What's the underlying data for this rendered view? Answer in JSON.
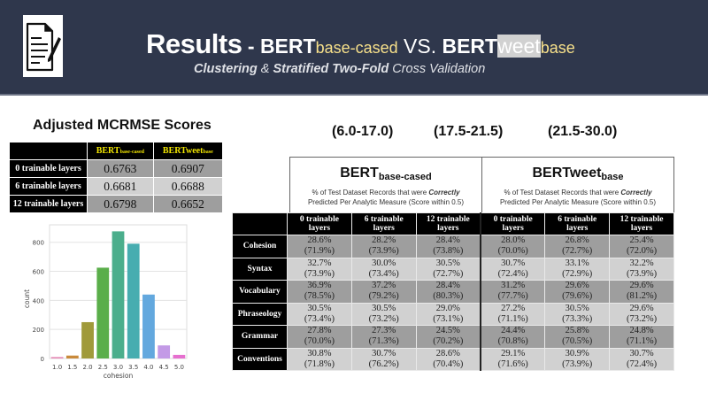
{
  "banner": {
    "title_main": "Results",
    "dash": " - ",
    "model1_name": "BERT",
    "model1_sub": "base-cased",
    "vs": " VS. ",
    "model2_name_bold": "BERT",
    "model2_name_light": "weet",
    "model2_sub": "base",
    "subtitle_part1": "Clustering",
    "subtitle_part2": " & ",
    "subtitle_part3": "Stratified Two-Fold",
    "subtitle_part4": " Cross Validation",
    "background_color": "#2f374c",
    "subscript_color": "#f7e08a"
  },
  "mcrmse": {
    "title": "Adjusted MCRMSE Scores",
    "columns": [
      {
        "name": "BERT",
        "sub": "base-cased"
      },
      {
        "name": "BERTweet",
        "sub": "base"
      }
    ],
    "rows": [
      {
        "label": "0 trainable layers",
        "values": [
          "0.6763",
          "0.6907"
        ]
      },
      {
        "label": "6 trainable layers",
        "values": [
          "0.6681",
          "0.6688"
        ]
      },
      {
        "label": "12 trainable layers",
        "values": [
          "0.6798",
          "0.6652"
        ]
      }
    ]
  },
  "ranges": [
    "(6.0-17.0)",
    "(17.5-21.5)",
    "(21.5-30.0)"
  ],
  "results": {
    "models": [
      {
        "name": "BERT",
        "sub": "base-cased",
        "desc_line1_a": "% of Test Dataset Records that were ",
        "desc_line1_b": "Correctly",
        "desc_line2": "Predicted Per Analytic Measure (Score within 0.5)"
      },
      {
        "name": "BERTweet",
        "sub": "base",
        "desc_line1_a": "% of Test Dataset Records that were ",
        "desc_line1_b": "Correctly",
        "desc_line2": "Predicted Per Analytic Measure (Score within 0.5)"
      }
    ],
    "column_headers": [
      [
        "0 trainable",
        "layers"
      ],
      [
        "6 trainable",
        "layers"
      ],
      [
        "12 trainable",
        "layers"
      ],
      [
        "0 trainable",
        "layers"
      ],
      [
        "6 trainable",
        "layers"
      ],
      [
        "12 trainable",
        "layers"
      ]
    ],
    "rows": [
      {
        "label": "Cohesion",
        "cells": [
          [
            "28.6%",
            "(71.9%)"
          ],
          [
            "28.2%",
            "(73.9%)"
          ],
          [
            "28.4%",
            "(73.8%)"
          ],
          [
            "28.0%",
            "(70.0%)"
          ],
          [
            "26.8%",
            "(72.7%)"
          ],
          [
            "25.4%",
            "(72.0%)"
          ]
        ]
      },
      {
        "label": "Syntax",
        "cells": [
          [
            "32.7%",
            "(73.9%)"
          ],
          [
            "30.0%",
            "(73.4%)"
          ],
          [
            "30.5%",
            "(72.7%)"
          ],
          [
            "30.7%",
            "(72.4%)"
          ],
          [
            "33.1%",
            "(72.9%)"
          ],
          [
            "32.2%",
            "(73.9%)"
          ]
        ]
      },
      {
        "label": "Vocabulary",
        "cells": [
          [
            "36.9%",
            "(78.5%)"
          ],
          [
            "37.2%",
            "(79.2%)"
          ],
          [
            "28.4%",
            "(80.3%)"
          ],
          [
            "31.2%",
            "(77.7%)"
          ],
          [
            "29.6%",
            "(79.6%)"
          ],
          [
            "29.6%",
            "(81.2%)"
          ]
        ]
      },
      {
        "label": "Phraseology",
        "cells": [
          [
            "30.5%",
            "(73.4%)"
          ],
          [
            "30.5%",
            "(73.2%)"
          ],
          [
            "29.0%",
            "(73.1%)"
          ],
          [
            "27.2%",
            "(71.1%)"
          ],
          [
            "30.5%",
            "(73.3%)"
          ],
          [
            "29.6%",
            "(73.2%)"
          ]
        ]
      },
      {
        "label": "Grammar",
        "cells": [
          [
            "27.8%",
            "(70.0%)"
          ],
          [
            "27.3%",
            "(71.3%)"
          ],
          [
            "24.5%",
            "(70.2%)"
          ],
          [
            "24.4%",
            "(70.8%)"
          ],
          [
            "25.8%",
            "(70.5%)"
          ],
          [
            "24.8%",
            "(71.1%)"
          ]
        ]
      },
      {
        "label": "Conventions",
        "cells": [
          [
            "30.8%",
            "(71.8%)"
          ],
          [
            "30.7%",
            "(76.2%)"
          ],
          [
            "28.6%",
            "(70.4%)"
          ],
          [
            "29.1%",
            "(71.6%)"
          ],
          [
            "30.9%",
            "(73.9%)"
          ],
          [
            "30.7%",
            "(72.4%)"
          ]
        ]
      }
    ]
  },
  "chart_data": {
    "type": "bar",
    "title": "",
    "xlabel": "cohesion",
    "ylabel": "count",
    "categories": [
      "1.0",
      "1.5",
      "2.0",
      "2.5",
      "3.0",
      "3.5",
      "4.0",
      "4.5",
      "5.0"
    ],
    "values": [
      10,
      20,
      250,
      625,
      875,
      790,
      440,
      90,
      25
    ],
    "colors": [
      "#e58ab5",
      "#c98a3b",
      "#a09a3a",
      "#5aae4a",
      "#4bae8c",
      "#47adb0",
      "#63a8de",
      "#c39ae6",
      "#e66fcf"
    ],
    "yticks": [
      0,
      200,
      400,
      600,
      800
    ],
    "ylim": [
      0,
      920
    ],
    "grid": true,
    "legend": null
  }
}
